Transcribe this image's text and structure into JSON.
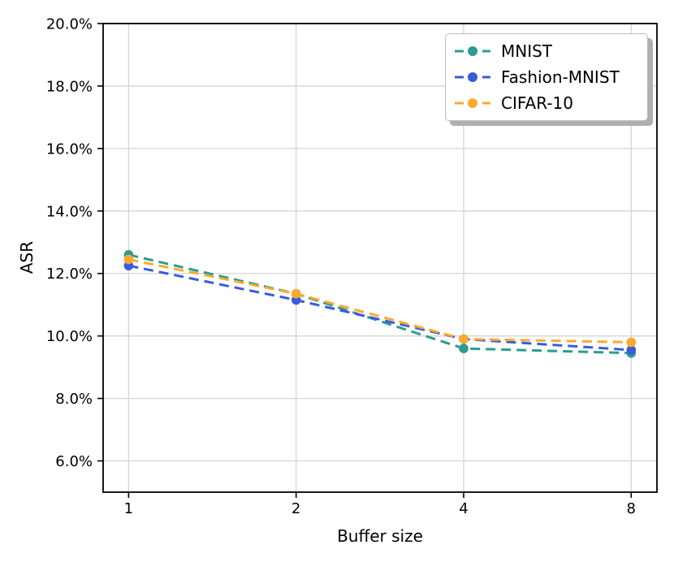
{
  "figure": {
    "background": "#ffffff"
  },
  "chart_data": {
    "type": "line",
    "title": "",
    "xlabel": "Buffer size",
    "ylabel": "ASR",
    "x_scale": "log2",
    "x": [
      1,
      2,
      4,
      8
    ],
    "xlim": [
      0.9,
      8.9
    ],
    "ylim": [
      5,
      20
    ],
    "grid": true,
    "grid_color": "#d4d4d4",
    "spine_color": "#000000",
    "legend_position": "upper right",
    "line_style": "dashed",
    "marker": "circle",
    "x_ticks": [
      1,
      2,
      4,
      8
    ],
    "x_tick_labels": [
      "1",
      "2",
      "4",
      "8"
    ],
    "y_ticks": [
      6,
      8,
      10,
      12,
      14,
      16,
      18,
      20
    ],
    "y_tick_labels": [
      "6.0%",
      "8.0%",
      "10.0%",
      "12.0%",
      "14.0%",
      "16.0%",
      "18.0%",
      "20.0%"
    ],
    "series": [
      {
        "name": "MNIST",
        "color": "#2a9d8f",
        "values_pct": [
          12.6,
          11.35,
          9.6,
          9.45
        ]
      },
      {
        "name": "Fashion-MNIST",
        "color": "#3b5bdb",
        "values_pct": [
          12.25,
          11.15,
          9.9,
          9.55
        ]
      },
      {
        "name": "CIFAR-10",
        "color": "#fbaa2f",
        "values_pct": [
          12.45,
          11.35,
          9.9,
          9.8
        ]
      }
    ]
  }
}
